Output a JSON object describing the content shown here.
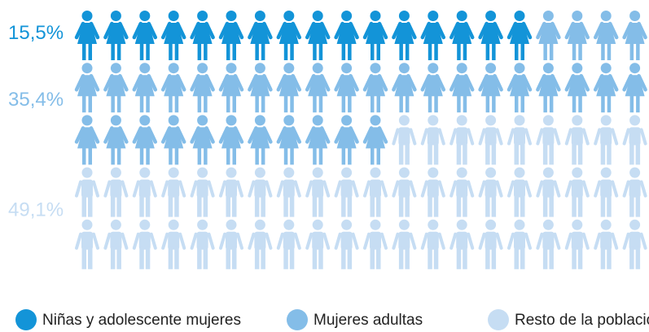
{
  "chart_data": {
    "type": "pictogram",
    "categories": [
      "Niñas y adolescente mujeres",
      "Mujeres adultas",
      "Resto de la población"
    ],
    "values": [
      15.5,
      35.4,
      49.1
    ],
    "value_labels": [
      "15,5%",
      "35,4%",
      "49,1%"
    ],
    "colors": [
      "#1394d8",
      "#84bde8",
      "#c6ddf3"
    ],
    "icons": [
      "female",
      "female",
      "male"
    ]
  }
}
